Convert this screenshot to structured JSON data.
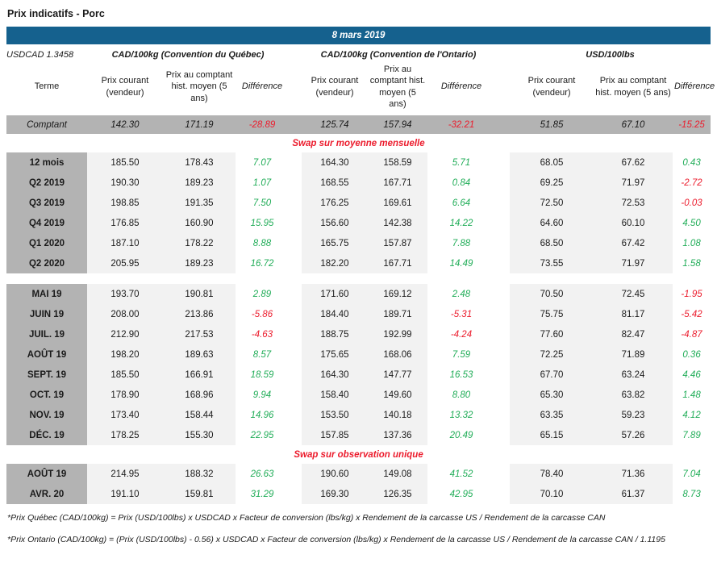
{
  "page_title": "Prix indicatifs - Porc",
  "banner_date": "8 mars 2019",
  "usdcad_label": "USDCAD 1.3458",
  "group_headers": [
    "CAD/100kg (Convention du Québec)",
    "CAD/100kg (Convention de l'Ontario)",
    "USD/100lbs"
  ],
  "column_headers": {
    "terme": "Terme",
    "prix_courant": "Prix courant (vendeur)",
    "prix_comptant": "Prix au comptant hist. moyen (5 ans)",
    "difference": "Différence"
  },
  "comptant_row": {
    "label": "Comptant",
    "values": [
      "142.30",
      "171.19",
      "-28.89",
      "125.74",
      "157.94",
      "-32.21",
      "51.85",
      "67.10",
      "-15.25"
    ]
  },
  "row_groups": [
    {
      "title": "Swap sur moyenne mensuelle",
      "rows": [
        {
          "label": "12 mois",
          "values": [
            "185.50",
            "178.43",
            "7.07",
            "164.30",
            "158.59",
            "5.71",
            "68.05",
            "67.62",
            "0.43"
          ]
        },
        {
          "label": "Q2 2019",
          "values": [
            "190.30",
            "189.23",
            "1.07",
            "168.55",
            "167.71",
            "0.84",
            "69.25",
            "71.97",
            "-2.72"
          ]
        },
        {
          "label": "Q3 2019",
          "values": [
            "198.85",
            "191.35",
            "7.50",
            "176.25",
            "169.61",
            "6.64",
            "72.50",
            "72.53",
            "-0.03"
          ]
        },
        {
          "label": "Q4 2019",
          "values": [
            "176.85",
            "160.90",
            "15.95",
            "156.60",
            "142.38",
            "14.22",
            "64.60",
            "60.10",
            "4.50"
          ]
        },
        {
          "label": "Q1 2020",
          "values": [
            "187.10",
            "178.22",
            "8.88",
            "165.75",
            "157.87",
            "7.88",
            "68.50",
            "67.42",
            "1.08"
          ]
        },
        {
          "label": "Q2 2020",
          "values": [
            "205.95",
            "189.23",
            "16.72",
            "182.20",
            "167.71",
            "14.49",
            "73.55",
            "71.97",
            "1.58"
          ]
        }
      ]
    },
    {
      "title": "",
      "rows": [
        {
          "label": "MAI 19",
          "values": [
            "193.70",
            "190.81",
            "2.89",
            "171.60",
            "169.12",
            "2.48",
            "70.50",
            "72.45",
            "-1.95"
          ]
        },
        {
          "label": "JUIN 19",
          "values": [
            "208.00",
            "213.86",
            "-5.86",
            "184.40",
            "189.71",
            "-5.31",
            "75.75",
            "81.17",
            "-5.42"
          ]
        },
        {
          "label": "JUIL. 19",
          "values": [
            "212.90",
            "217.53",
            "-4.63",
            "188.75",
            "192.99",
            "-4.24",
            "77.60",
            "82.47",
            "-4.87"
          ]
        },
        {
          "label": "AOÛT 19",
          "values": [
            "198.20",
            "189.63",
            "8.57",
            "175.65",
            "168.06",
            "7.59",
            "72.25",
            "71.89",
            "0.36"
          ]
        },
        {
          "label": "SEPT. 19",
          "values": [
            "185.50",
            "166.91",
            "18.59",
            "164.30",
            "147.77",
            "16.53",
            "67.70",
            "63.24",
            "4.46"
          ]
        },
        {
          "label": "OCT. 19",
          "values": [
            "178.90",
            "168.96",
            "9.94",
            "158.40",
            "149.60",
            "8.80",
            "65.30",
            "63.82",
            "1.48"
          ]
        },
        {
          "label": "NOV. 19",
          "values": [
            "173.40",
            "158.44",
            "14.96",
            "153.50",
            "140.18",
            "13.32",
            "63.35",
            "59.23",
            "4.12"
          ]
        },
        {
          "label": "DÉC. 19",
          "values": [
            "178.25",
            "155.30",
            "22.95",
            "157.85",
            "137.36",
            "20.49",
            "65.15",
            "57.26",
            "7.89"
          ]
        }
      ]
    },
    {
      "title": "Swap sur observation unique",
      "rows": [
        {
          "label": "AOÛT 19",
          "values": [
            "214.95",
            "188.32",
            "26.63",
            "190.60",
            "149.08",
            "41.52",
            "78.40",
            "71.36",
            "7.04"
          ]
        },
        {
          "label": "AVR. 20",
          "values": [
            "191.10",
            "159.81",
            "31.29",
            "169.30",
            "126.35",
            "42.95",
            "70.10",
            "61.37",
            "8.73"
          ]
        }
      ]
    }
  ],
  "footnotes": [
    "*Prix Québec (CAD/100kg) = Prix (USD/100lbs) x USDCAD x Facteur de conversion (lbs/kg) x Rendement de la carcasse US / Rendement de la carcasse CAN",
    "*Prix Ontario (CAD/100kg) = (Prix (USD/100lbs) - 0.56) x USDCAD x Facteur de conversion (lbs/kg) x Rendement de la carcasse US / Rendement de la carcasse CAN / 1.1195"
  ],
  "colors": {
    "banner_bg": "#15618e",
    "label_bg": "#b3b3b3",
    "cell_bg": "#f2f2f2",
    "positive": "#21ad58",
    "negative": "#ec1c2d"
  }
}
